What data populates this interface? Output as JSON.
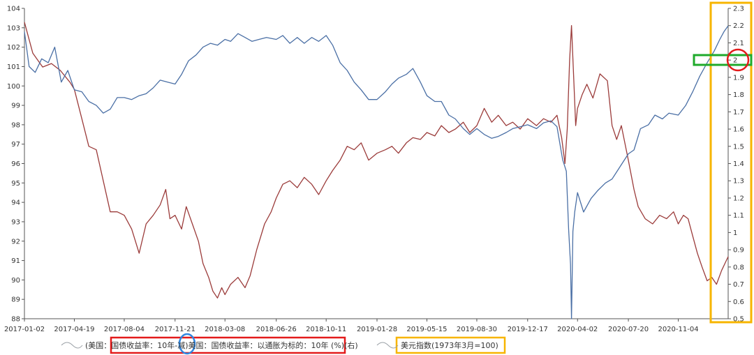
{
  "chart_data": {
    "type": "line",
    "title": "",
    "x_ticks": [
      "2017-01-02",
      "2017-04-19",
      "2017-08-04",
      "2017-11-21",
      "2018-03-08",
      "2018-06-26",
      "2018-10-11",
      "2019-01-28",
      "2019-05-15",
      "2019-08-30",
      "2019-12-17",
      "2020-04-02",
      "2020-07-20",
      "2020-11-04"
    ],
    "x_range": [
      "2017-01-02",
      "2021-02-19"
    ],
    "y_left": {
      "range": [
        88,
        104
      ],
      "ticks": [
        "104",
        "103",
        "102",
        "101",
        "100",
        "99",
        "98",
        "97",
        "96",
        "95",
        "94",
        "93",
        "92",
        "91",
        "90",
        "89",
        "88"
      ]
    },
    "y_right": {
      "range": [
        0.5,
        2.3
      ],
      "ticks": [
        "2.3",
        "2.2",
        "2.1",
        "2",
        "1.9",
        "1.8",
        "1.7",
        "1.6",
        "1.5",
        "1.4",
        "1.3",
        "1.2",
        "1.1",
        "1",
        "0.9",
        "0.8",
        "0.7",
        "0.6",
        "0.5"
      ]
    },
    "grid": false,
    "legend_position": "bottom",
    "series": [
      {
        "name": "(美国：国债收益率：10年-减)美国：国债收益率：以通胀为标的：10年 (%)(右)",
        "axis": "right",
        "color": "#9b3b3a",
        "points": [
          [
            "2017-01-02",
            2.22
          ],
          [
            "2017-01-20",
            2.04
          ],
          [
            "2017-02-10",
            1.96
          ],
          [
            "2017-03-01",
            1.98
          ],
          [
            "2017-03-20",
            1.94
          ],
          [
            "2017-04-10",
            1.87
          ],
          [
            "2017-04-19",
            1.83
          ],
          [
            "2017-05-05",
            1.66
          ],
          [
            "2017-05-20",
            1.5
          ],
          [
            "2017-06-05",
            1.48
          ],
          [
            "2017-06-20",
            1.3
          ],
          [
            "2017-07-05",
            1.12
          ],
          [
            "2017-07-20",
            1.12
          ],
          [
            "2017-08-04",
            1.1
          ],
          [
            "2017-08-20",
            1.02
          ],
          [
            "2017-09-05",
            0.88
          ],
          [
            "2017-09-20",
            1.05
          ],
          [
            "2017-10-05",
            1.1
          ],
          [
            "2017-10-20",
            1.16
          ],
          [
            "2017-11-01",
            1.25
          ],
          [
            "2017-11-10",
            1.08
          ],
          [
            "2017-11-21",
            1.1
          ],
          [
            "2017-12-05",
            1.02
          ],
          [
            "2017-12-15",
            1.15
          ],
          [
            "2017-12-28",
            1.05
          ],
          [
            "2018-01-10",
            0.95
          ],
          [
            "2018-01-20",
            0.82
          ],
          [
            "2018-02-01",
            0.74
          ],
          [
            "2018-02-10",
            0.66
          ],
          [
            "2018-02-20",
            0.62
          ],
          [
            "2018-03-01",
            0.68
          ],
          [
            "2018-03-08",
            0.64
          ],
          [
            "2018-03-20",
            0.7
          ],
          [
            "2018-04-05",
            0.74
          ],
          [
            "2018-04-20",
            0.68
          ],
          [
            "2018-05-01",
            0.75
          ],
          [
            "2018-05-15",
            0.9
          ],
          [
            "2018-06-01",
            1.05
          ],
          [
            "2018-06-15",
            1.12
          ],
          [
            "2018-06-26",
            1.2
          ],
          [
            "2018-07-10",
            1.28
          ],
          [
            "2018-07-25",
            1.3
          ],
          [
            "2018-08-10",
            1.26
          ],
          [
            "2018-08-25",
            1.32
          ],
          [
            "2018-09-10",
            1.28
          ],
          [
            "2018-09-25",
            1.22
          ],
          [
            "2018-10-11",
            1.3
          ],
          [
            "2018-10-25",
            1.36
          ],
          [
            "2018-11-10",
            1.42
          ],
          [
            "2018-11-25",
            1.5
          ],
          [
            "2018-12-10",
            1.48
          ],
          [
            "2018-12-25",
            1.52
          ],
          [
            "2019-01-10",
            1.42
          ],
          [
            "2019-01-28",
            1.46
          ],
          [
            "2019-02-15",
            1.48
          ],
          [
            "2019-03-01",
            1.5
          ],
          [
            "2019-03-15",
            1.46
          ],
          [
            "2019-04-01",
            1.52
          ],
          [
            "2019-04-15",
            1.55
          ],
          [
            "2019-05-01",
            1.54
          ],
          [
            "2019-05-15",
            1.58
          ],
          [
            "2019-06-01",
            1.56
          ],
          [
            "2019-06-15",
            1.62
          ],
          [
            "2019-07-01",
            1.58
          ],
          [
            "2019-07-15",
            1.6
          ],
          [
            "2019-08-01",
            1.64
          ],
          [
            "2019-08-15",
            1.58
          ],
          [
            "2019-08-30",
            1.62
          ],
          [
            "2019-09-15",
            1.72
          ],
          [
            "2019-10-01",
            1.64
          ],
          [
            "2019-10-15",
            1.68
          ],
          [
            "2019-11-01",
            1.62
          ],
          [
            "2019-11-15",
            1.64
          ],
          [
            "2019-12-01",
            1.6
          ],
          [
            "2019-12-17",
            1.66
          ],
          [
            "2020-01-05",
            1.62
          ],
          [
            "2020-01-20",
            1.66
          ],
          [
            "2020-02-05",
            1.64
          ],
          [
            "2020-02-18",
            1.68
          ],
          [
            "2020-02-28",
            1.55
          ],
          [
            "2020-03-06",
            1.4
          ],
          [
            "2020-03-11",
            1.6
          ],
          [
            "2020-03-16",
            2.0
          ],
          [
            "2020-03-20",
            2.2
          ],
          [
            "2020-03-24",
            1.95
          ],
          [
            "2020-03-29",
            1.62
          ],
          [
            "2020-04-02",
            1.72
          ],
          [
            "2020-04-12",
            1.8
          ],
          [
            "2020-04-22",
            1.86
          ],
          [
            "2020-05-05",
            1.78
          ],
          [
            "2020-05-20",
            1.92
          ],
          [
            "2020-06-05",
            1.88
          ],
          [
            "2020-06-15",
            1.62
          ],
          [
            "2020-06-25",
            1.54
          ],
          [
            "2020-07-05",
            1.62
          ],
          [
            "2020-07-20",
            1.42
          ],
          [
            "2020-08-01",
            1.25
          ],
          [
            "2020-08-10",
            1.15
          ],
          [
            "2020-08-25",
            1.08
          ],
          [
            "2020-09-10",
            1.05
          ],
          [
            "2020-09-25",
            1.1
          ],
          [
            "2020-10-10",
            1.08
          ],
          [
            "2020-10-25",
            1.12
          ],
          [
            "2020-11-04",
            1.05
          ],
          [
            "2020-11-15",
            1.1
          ],
          [
            "2020-11-25",
            1.08
          ],
          [
            "2020-12-05",
            0.98
          ],
          [
            "2020-12-15",
            0.88
          ],
          [
            "2020-12-25",
            0.8
          ],
          [
            "2021-01-05",
            0.72
          ],
          [
            "2021-01-15",
            0.74
          ],
          [
            "2021-01-25",
            0.7
          ],
          [
            "2021-02-05",
            0.78
          ],
          [
            "2021-02-12",
            0.82
          ],
          [
            "2021-02-19",
            0.86
          ]
        ]
      },
      {
        "name": "美元指数(1973年3月=100)",
        "axis": "left",
        "color": "#4a6fa5",
        "points": [
          [
            "2017-01-02",
            102.8
          ],
          [
            "2017-01-12",
            101.0
          ],
          [
            "2017-01-25",
            100.7
          ],
          [
            "2017-02-08",
            101.4
          ],
          [
            "2017-02-22",
            101.2
          ],
          [
            "2017-03-08",
            102.0
          ],
          [
            "2017-03-22",
            100.2
          ],
          [
            "2017-04-05",
            100.8
          ],
          [
            "2017-04-19",
            99.8
          ],
          [
            "2017-05-05",
            99.7
          ],
          [
            "2017-05-20",
            99.2
          ],
          [
            "2017-06-05",
            99.0
          ],
          [
            "2017-06-20",
            98.6
          ],
          [
            "2017-07-05",
            98.8
          ],
          [
            "2017-07-20",
            99.4
          ],
          [
            "2017-08-04",
            99.4
          ],
          [
            "2017-08-20",
            99.3
          ],
          [
            "2017-09-05",
            99.5
          ],
          [
            "2017-09-20",
            99.6
          ],
          [
            "2017-10-05",
            99.9
          ],
          [
            "2017-10-20",
            100.3
          ],
          [
            "2017-11-05",
            100.2
          ],
          [
            "2017-11-21",
            100.1
          ],
          [
            "2017-12-05",
            100.6
          ],
          [
            "2017-12-20",
            101.3
          ],
          [
            "2018-01-05",
            101.6
          ],
          [
            "2018-01-20",
            102.0
          ],
          [
            "2018-02-05",
            102.2
          ],
          [
            "2018-02-20",
            102.1
          ],
          [
            "2018-03-08",
            102.4
          ],
          [
            "2018-03-20",
            102.3
          ],
          [
            "2018-04-05",
            102.7
          ],
          [
            "2018-04-20",
            102.5
          ],
          [
            "2018-05-05",
            102.3
          ],
          [
            "2018-05-20",
            102.4
          ],
          [
            "2018-06-05",
            102.5
          ],
          [
            "2018-06-26",
            102.4
          ],
          [
            "2018-07-10",
            102.6
          ],
          [
            "2018-07-25",
            102.2
          ],
          [
            "2018-08-10",
            102.5
          ],
          [
            "2018-08-25",
            102.2
          ],
          [
            "2018-09-10",
            102.5
          ],
          [
            "2018-09-25",
            102.3
          ],
          [
            "2018-10-11",
            102.6
          ],
          [
            "2018-10-25",
            102.1
          ],
          [
            "2018-11-10",
            101.2
          ],
          [
            "2018-11-25",
            100.8
          ],
          [
            "2018-12-10",
            100.2
          ],
          [
            "2018-12-25",
            99.8
          ],
          [
            "2019-01-10",
            99.3
          ],
          [
            "2019-01-28",
            99.3
          ],
          [
            "2019-02-15",
            99.7
          ],
          [
            "2019-03-01",
            100.1
          ],
          [
            "2019-03-15",
            100.4
          ],
          [
            "2019-04-01",
            100.6
          ],
          [
            "2019-04-15",
            100.9
          ],
          [
            "2019-05-01",
            100.2
          ],
          [
            "2019-05-15",
            99.5
          ],
          [
            "2019-06-01",
            99.2
          ],
          [
            "2019-06-15",
            99.2
          ],
          [
            "2019-07-01",
            98.5
          ],
          [
            "2019-07-15",
            98.3
          ],
          [
            "2019-08-01",
            97.8
          ],
          [
            "2019-08-15",
            97.5
          ],
          [
            "2019-08-30",
            97.8
          ],
          [
            "2019-09-15",
            97.5
          ],
          [
            "2019-10-01",
            97.3
          ],
          [
            "2019-10-15",
            97.4
          ],
          [
            "2019-11-01",
            97.6
          ],
          [
            "2019-11-15",
            97.8
          ],
          [
            "2019-12-01",
            97.9
          ],
          [
            "2019-12-17",
            98.0
          ],
          [
            "2020-01-05",
            97.8
          ],
          [
            "2020-01-20",
            98.1
          ],
          [
            "2020-02-05",
            98.2
          ],
          [
            "2020-02-18",
            97.9
          ],
          [
            "2020-03-01",
            96.2
          ],
          [
            "2020-03-09",
            95.6
          ],
          [
            "2020-03-14",
            92.6
          ],
          [
            "2020-03-18",
            90.8
          ],
          [
            "2020-03-20",
            88.0
          ],
          [
            "2020-03-23",
            92.5
          ],
          [
            "2020-03-27",
            93.5
          ],
          [
            "2020-04-02",
            94.5
          ],
          [
            "2020-04-15",
            93.5
          ],
          [
            "2020-05-01",
            94.2
          ],
          [
            "2020-05-15",
            94.6
          ],
          [
            "2020-06-01",
            95.0
          ],
          [
            "2020-06-15",
            95.2
          ],
          [
            "2020-07-01",
            95.8
          ],
          [
            "2020-07-20",
            96.5
          ],
          [
            "2020-08-01",
            96.7
          ],
          [
            "2020-08-15",
            97.8
          ],
          [
            "2020-09-01",
            98.0
          ],
          [
            "2020-09-15",
            98.5
          ],
          [
            "2020-10-01",
            98.3
          ],
          [
            "2020-10-15",
            98.6
          ],
          [
            "2020-11-04",
            98.5
          ],
          [
            "2020-11-20",
            99.0
          ],
          [
            "2020-12-05",
            99.7
          ],
          [
            "2020-12-20",
            100.5
          ],
          [
            "2021-01-05",
            101.2
          ],
          [
            "2021-01-20",
            101.8
          ],
          [
            "2021-02-01",
            102.4
          ],
          [
            "2021-02-10",
            102.8
          ],
          [
            "2021-02-19",
            103.1
          ]
        ]
      }
    ]
  },
  "legend": {
    "items": [
      {
        "label": "(美国：国债收益率：10年-减)美国：国债收益率：以通胀为标的：10年 (%)(右)",
        "color": "#9b3b3a"
      },
      {
        "label": "美元指数(1973年3月=100)",
        "color": "#4a6fa5"
      }
    ]
  },
  "highlight_colors": {
    "red_box": "#e31b1b",
    "blue_circle": "#2f86e0",
    "yellow_box": "#f7b500",
    "green_box": "#1faa2b",
    "red_circle": "#e31b1b"
  }
}
